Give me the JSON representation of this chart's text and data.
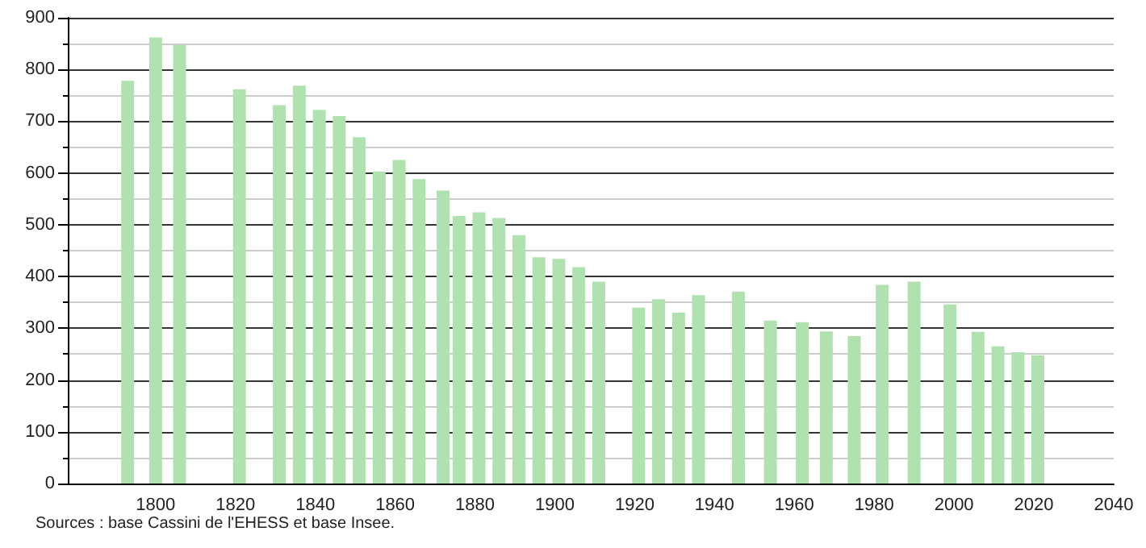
{
  "chart_data": {
    "type": "bar",
    "x": [
      1793,
      1800,
      1806,
      1821,
      1831,
      1836,
      1841,
      1846,
      1851,
      1856,
      1861,
      1866,
      1872,
      1876,
      1881,
      1886,
      1891,
      1896,
      1901,
      1906,
      1911,
      1921,
      1926,
      1931,
      1936,
      1946,
      1954,
      1962,
      1968,
      1975,
      1982,
      1990,
      1999,
      2006,
      2011,
      2016,
      2021
    ],
    "values": [
      778,
      862,
      848,
      762,
      731,
      769,
      722,
      710,
      669,
      603,
      625,
      588,
      566,
      517,
      524,
      513,
      480,
      437,
      434,
      418,
      390,
      340,
      356,
      330,
      364,
      371,
      315,
      312,
      294,
      285,
      384,
      390,
      346,
      293,
      265,
      254,
      248
    ],
    "color": "#b0e2b0",
    "xlim": [
      1778,
      2040
    ],
    "xticks": [
      1800,
      1820,
      1840,
      1860,
      1880,
      1900,
      1920,
      1940,
      1960,
      1980,
      2000,
      2020,
      2040
    ],
    "ylim": [
      0,
      900
    ],
    "yticks": [
      0,
      100,
      200,
      300,
      400,
      500,
      600,
      700,
      800,
      900
    ],
    "grid": "y",
    "annotations": [
      "Sources : base Cassini de l'EHESS et base Insee."
    ]
  }
}
